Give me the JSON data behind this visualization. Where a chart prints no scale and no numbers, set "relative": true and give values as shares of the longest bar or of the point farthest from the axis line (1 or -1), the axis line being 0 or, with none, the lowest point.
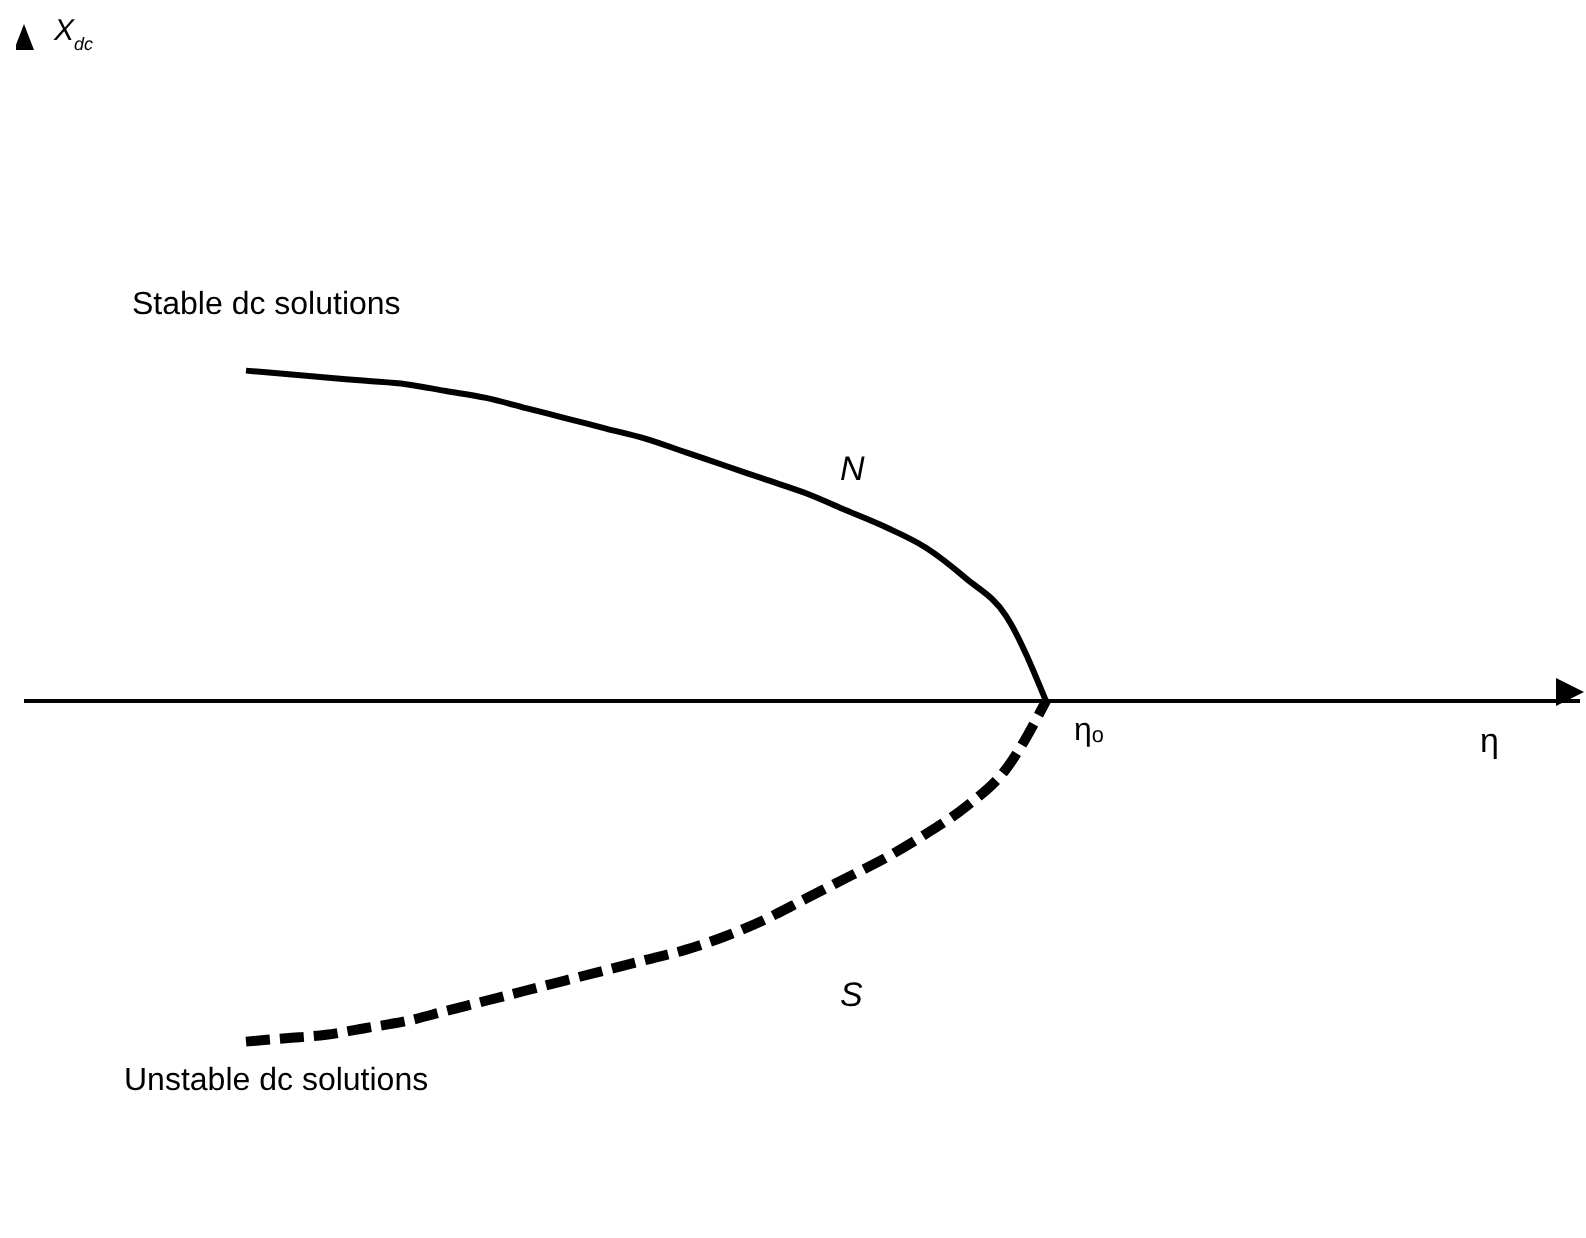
{
  "chart_data": {
    "type": "line",
    "relative": true,
    "categories": [
      null,
      null,
      null,
      null,
      null,
      null,
      null,
      null,
      null,
      null,
      null,
      null,
      null,
      null,
      null,
      null,
      null,
      null,
      null,
      null,
      null
    ],
    "series": [
      {
        "name": "N",
        "color": "#000000",
        "line_style": "solid",
        "values": [
          0.97,
          0.96,
          0.95,
          0.94,
          0.93,
          0.91,
          0.89,
          0.86,
          0.83,
          0.8,
          0.77,
          0.73,
          0.69,
          0.65,
          0.61,
          0.56,
          0.51,
          0.45,
          0.36,
          0.25,
          0
        ]
      },
      {
        "name": "S",
        "color": "#000000",
        "line_style": "dashed",
        "values": [
          -1,
          -0.99,
          -0.98,
          -0.96,
          -0.94,
          -0.91,
          -0.88,
          -0.85,
          -0.82,
          -0.79,
          -0.76,
          -0.73,
          -0.69,
          -0.64,
          -0.58,
          -0.52,
          -0.46,
          -0.39,
          -0.31,
          -0.2,
          0
        ]
      }
    ],
    "annotations": [
      "Stable dc solutions",
      "Unstable dc solutions",
      "ηₒ",
      "η",
      "X$_{dc}$"
    ],
    "legend": false,
    "grid": false,
    "marker": "none"
  }
}
